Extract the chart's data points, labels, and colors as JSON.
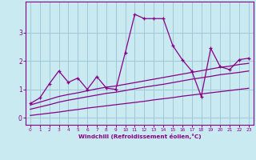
{
  "xlabel": "Windchill (Refroidissement éolien,°C)",
  "background_color": "#c8eaf0",
  "grid_color": "#a0c8d8",
  "line_color": "#880088",
  "x": [
    0,
    1,
    2,
    3,
    4,
    5,
    6,
    7,
    8,
    9,
    10,
    11,
    12,
    13,
    14,
    15,
    16,
    17,
    18,
    19,
    20,
    21,
    22,
    23
  ],
  "y_main": [
    0.5,
    0.7,
    1.2,
    1.65,
    1.25,
    1.4,
    1.0,
    1.45,
    1.05,
    1.0,
    2.3,
    3.65,
    3.5,
    3.5,
    3.5,
    2.55,
    2.05,
    1.65,
    0.75,
    2.45,
    1.8,
    1.7,
    2.05,
    2.1
  ],
  "y_band1": [
    0.45,
    0.55,
    0.65,
    0.75,
    0.82,
    0.88,
    0.95,
    1.02,
    1.08,
    1.12,
    1.18,
    1.24,
    1.3,
    1.36,
    1.42,
    1.48,
    1.54,
    1.6,
    1.66,
    1.72,
    1.78,
    1.82,
    1.88,
    1.92
  ],
  "y_band2": [
    0.3,
    0.38,
    0.46,
    0.55,
    0.62,
    0.68,
    0.74,
    0.8,
    0.86,
    0.9,
    0.96,
    1.02,
    1.08,
    1.13,
    1.18,
    1.24,
    1.3,
    1.36,
    1.41,
    1.46,
    1.52,
    1.56,
    1.6,
    1.65
  ],
  "y_band3": [
    0.08,
    0.12,
    0.16,
    0.2,
    0.25,
    0.29,
    0.34,
    0.38,
    0.42,
    0.46,
    0.5,
    0.54,
    0.58,
    0.63,
    0.67,
    0.71,
    0.76,
    0.8,
    0.84,
    0.88,
    0.92,
    0.96,
    1.0,
    1.04
  ],
  "ylim": [
    -0.25,
    4.1
  ],
  "yticks": [
    0,
    1,
    2,
    3
  ],
  "xlim": [
    -0.5,
    23.5
  ],
  "xticks": [
    0,
    1,
    2,
    3,
    4,
    5,
    6,
    7,
    8,
    9,
    10,
    11,
    12,
    13,
    14,
    15,
    16,
    17,
    18,
    19,
    20,
    21,
    22,
    23
  ]
}
